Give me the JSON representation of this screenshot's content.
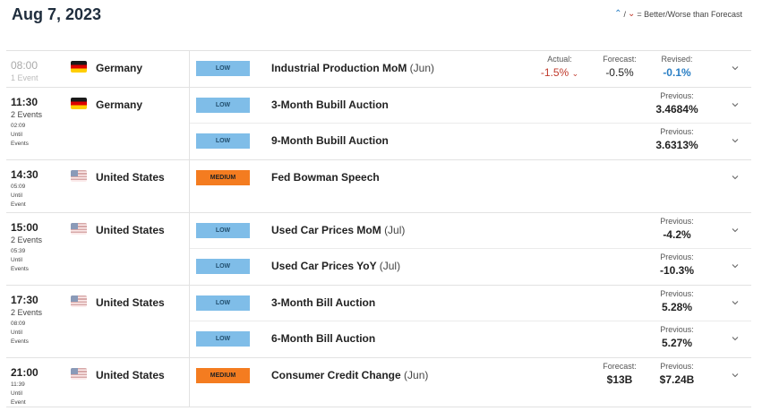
{
  "header": {
    "date": "Aug 7, 2023",
    "legend_text": "= Better/Worse than Forecast",
    "legend_up": "⌃",
    "legend_sep": "/",
    "legend_down": "⌄"
  },
  "colors": {
    "low": "#7fbde8",
    "medium": "#f47c20",
    "worse": "#c0392b",
    "better": "#2a7fc5"
  },
  "groups": [
    {
      "time": "08:00",
      "count": "1 Event",
      "until": "",
      "country": "Germany",
      "flag": "de",
      "events": [
        {
          "impact": "LOW",
          "name": "Industrial Production MoM",
          "period": "(Jun)",
          "actual_label": "Actual:",
          "actual": "-1.5%",
          "actual_icon": "worse-arrow-icon",
          "forecast_label": "Forecast:",
          "forecast": "-0.5%",
          "revised_label": "Revised:",
          "revised": "-0.1%"
        }
      ]
    },
    {
      "time": "11:30",
      "count": "2 Events",
      "until": "02:09\nUntil\nEvents",
      "country": "Germany",
      "flag": "de",
      "events": [
        {
          "impact": "LOW",
          "name": "3-Month Bubill Auction",
          "period": "",
          "previous_label": "Previous:",
          "previous": "3.4684%"
        },
        {
          "impact": "LOW",
          "name": "9-Month Bubill Auction",
          "period": "",
          "previous_label": "Previous:",
          "previous": "3.6313%"
        }
      ]
    },
    {
      "time": "14:30",
      "count": "",
      "until": "05:09\nUntil\nEvent",
      "country": "United States",
      "flag": "us",
      "events": [
        {
          "impact": "MEDIUM",
          "name": "Fed Bowman Speech",
          "period": ""
        }
      ]
    },
    {
      "time": "15:00",
      "count": "2 Events",
      "until": "05:39\nUntil\nEvents",
      "country": "United States",
      "flag": "us",
      "events": [
        {
          "impact": "LOW",
          "name": "Used Car Prices MoM",
          "period": "(Jul)",
          "previous_label": "Previous:",
          "previous": "-4.2%"
        },
        {
          "impact": "LOW",
          "name": "Used Car Prices YoY",
          "period": "(Jul)",
          "previous_label": "Previous:",
          "previous": "-10.3%"
        }
      ]
    },
    {
      "time": "17:30",
      "count": "2 Events",
      "until": "08:09\nUntil\nEvents",
      "country": "United States",
      "flag": "us",
      "events": [
        {
          "impact": "LOW",
          "name": "3-Month Bill Auction",
          "period": "",
          "previous_label": "Previous:",
          "previous": "5.28%"
        },
        {
          "impact": "LOW",
          "name": "6-Month Bill Auction",
          "period": "",
          "previous_label": "Previous:",
          "previous": "5.27%"
        }
      ]
    },
    {
      "time": "21:00",
      "count": "",
      "until": "11:39\nUntil\nEvent",
      "country": "United States",
      "flag": "us",
      "events": [
        {
          "impact": "MEDIUM",
          "name": "Consumer Credit Change",
          "period": "(Jun)",
          "forecast_label": "Forecast:",
          "forecast": "$13B",
          "previous_label": "Previous:",
          "previous": "$7.24B"
        }
      ]
    }
  ]
}
